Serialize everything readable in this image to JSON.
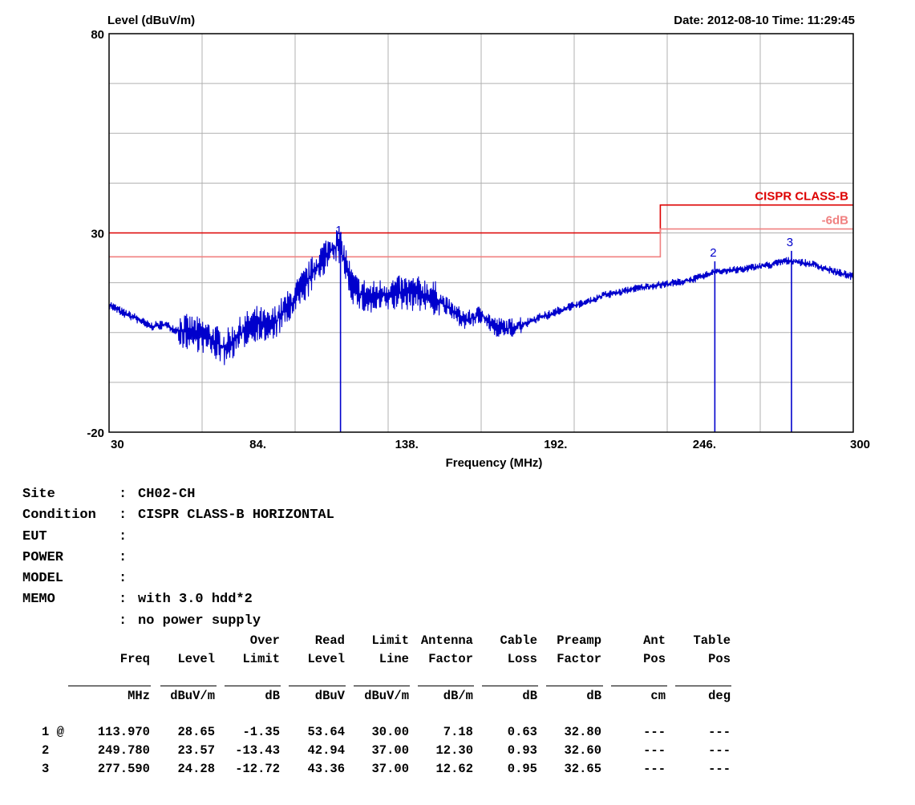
{
  "header": {
    "y_axis_title": "Level (dBuV/m)",
    "date_time": "Date: 2012-08-10  Time: 11:29:45"
  },
  "chart_data": {
    "type": "line",
    "title": "",
    "xlabel": "Frequency (MHz)",
    "ylabel": "Level (dBuV/m)",
    "xlim": [
      30,
      300
    ],
    "ylim": [
      -20,
      80
    ],
    "x_ticks": [
      "30",
      "84.",
      "138.",
      "192.",
      "246.",
      "300"
    ],
    "y_ticks": [
      "80",
      "30",
      "-20"
    ],
    "grid": true,
    "colors": {
      "trace": "#0000cc",
      "limit": "#dd0000",
      "margin": "#f08080"
    },
    "limits": [
      {
        "name": "CISPR CLASS-B",
        "segments": [
          [
            30,
            230,
            30
          ],
          [
            230,
            300,
            37
          ]
        ]
      },
      {
        "name": "-6dB",
        "segments": [
          [
            30,
            230,
            24
          ],
          [
            230,
            300,
            31
          ]
        ]
      }
    ],
    "trace": {
      "x": [
        30,
        35,
        40,
        45,
        50,
        55,
        60,
        65,
        70,
        72,
        75,
        80,
        84,
        88,
        92,
        96,
        100,
        104,
        108,
        111,
        113,
        114,
        116,
        118,
        120,
        125,
        130,
        138,
        145,
        150,
        155,
        160,
        165,
        170,
        175,
        180,
        185,
        190,
        195,
        200,
        205,
        210,
        215,
        220,
        225,
        230,
        235,
        240,
        245,
        249,
        250,
        255,
        260,
        265,
        270,
        275,
        278,
        282,
        286,
        290,
        295,
        300
      ],
      "y": [
        12,
        10,
        8.5,
        6.5,
        7,
        5.5,
        5,
        4,
        2,
        1,
        3,
        6,
        7.5,
        6,
        9,
        12,
        16,
        20,
        24,
        26,
        27,
        26,
        22,
        17,
        15,
        13.5,
        14.5,
        15,
        14.5,
        13,
        10,
        8,
        9.5,
        6.5,
        6,
        7,
        8.5,
        9.5,
        11,
        12,
        13,
        14.5,
        15,
        16,
        16.5,
        17,
        17.5,
        18,
        19,
        20,
        20.5,
        20.5,
        21,
        21.5,
        22,
        23,
        23,
        22.5,
        22,
        21,
        20,
        19
      ]
    },
    "markers": [
      {
        "label": "1",
        "freq": 113.97
      },
      {
        "label": "2",
        "freq": 249.78
      },
      {
        "label": "3",
        "freq": 277.59
      }
    ]
  },
  "info": [
    {
      "key": "Site",
      "sep": ":",
      "value": "CH02-CH"
    },
    {
      "key": "Condition",
      "sep": ":",
      "value": "CISPR CLASS-B HORIZONTAL"
    },
    {
      "key": "EUT",
      "sep": ":",
      "value": ""
    },
    {
      "key": "POWER",
      "sep": ":",
      "value": ""
    },
    {
      "key": "MODEL",
      "sep": ":",
      "value": ""
    },
    {
      "key": "MEMO",
      "sep": ":",
      "value": "with 3.0 hdd*2"
    },
    {
      "key": "",
      "sep": ":",
      "value": "no power supply"
    }
  ],
  "table": {
    "header_line1": [
      "",
      "",
      "",
      "Over",
      "Read",
      "Limit",
      "Antenna",
      "Cable",
      "Preamp",
      "Ant",
      "Table"
    ],
    "header_line2": [
      "",
      "Freq",
      "Level",
      "Limit",
      "Level",
      "Line",
      "Factor",
      "Loss",
      "Factor",
      "Pos",
      "Pos"
    ],
    "units": [
      "",
      "MHz",
      "dBuV/m",
      "dB",
      "dBuV",
      "dBuV/m",
      "dB/m",
      "dB",
      "dB",
      "cm",
      "deg"
    ],
    "rows": [
      [
        "1 @",
        "113.970",
        "28.65",
        "-1.35",
        "53.64",
        "30.00",
        "7.18",
        "0.63",
        "32.80",
        "---",
        "---"
      ],
      [
        "2",
        "249.780",
        "23.57",
        "-13.43",
        "42.94",
        "37.00",
        "12.30",
        "0.93",
        "32.60",
        "---",
        "---"
      ],
      [
        "3",
        "277.590",
        "24.28",
        "-12.72",
        "43.36",
        "37.00",
        "12.62",
        "0.95",
        "32.65",
        "---",
        "---"
      ]
    ]
  }
}
